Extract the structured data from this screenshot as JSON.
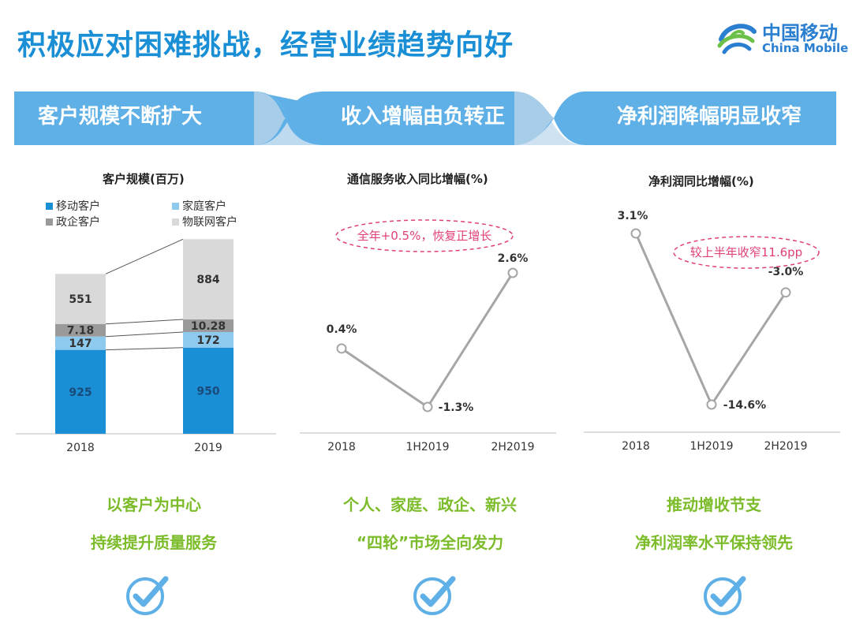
{
  "header": {
    "title": "积极应对困难挑战，经营业绩趋势向好",
    "logo_cn": "中国移动",
    "logo_en": "China Mobile"
  },
  "banners": [
    {
      "label": "客户规模不断扩大"
    },
    {
      "label": "收入增幅由负转正"
    },
    {
      "label": "净利润降幅明显收窄"
    }
  ],
  "colors": {
    "title_blue": "#1a8fd6",
    "banner_blue": "#5fb0e6",
    "mobile": "#1a8fd6",
    "home": "#8ec9ee",
    "enterprise": "#9a9a9a",
    "iot": "#d9d9d9",
    "accent_green": "#7cbc2a",
    "annotation_pink": "#e0407a"
  },
  "chart_data": [
    {
      "type": "bar",
      "stacked": true,
      "title": "客户规模(百万)",
      "categories": [
        "2018",
        "2019"
      ],
      "series": [
        {
          "name": "移动客户",
          "values": [
            925,
            950
          ]
        },
        {
          "name": "家庭客户",
          "values": [
            147,
            172
          ]
        },
        {
          "name": "政企客户",
          "values": [
            7.18,
            10.28
          ]
        },
        {
          "name": "物联网客户",
          "values": [
            551,
            884
          ]
        }
      ],
      "value_labels": [
        [
          "925",
          "950"
        ],
        [
          "147",
          "172"
        ],
        [
          "7.18",
          "10.28"
        ],
        [
          "551",
          "884"
        ]
      ],
      "legend_position": "top-left"
    },
    {
      "type": "line",
      "title": "通信服务收入同比增幅(%)",
      "categories": [
        "2018",
        "1H2019",
        "2H2019"
      ],
      "values": [
        0.4,
        -1.3,
        2.6
      ],
      "value_labels": [
        "0.4%",
        "-1.3%",
        "2.6%"
      ],
      "annotation": "全年+0.5%，恢复正增长"
    },
    {
      "type": "line",
      "title": "净利润同比增幅(%)",
      "categories": [
        "2018",
        "1H2019",
        "2H2019"
      ],
      "values": [
        3.1,
        -14.6,
        -3.0
      ],
      "value_labels": [
        "3.1%",
        "-14.6%",
        "-3.0%"
      ],
      "annotation": "较上半年收窄11.6pp"
    }
  ],
  "takeaways": [
    {
      "line1": "以客户为中心",
      "line2": "持续提升质量服务",
      "icon": "checkmark-circle-icon"
    },
    {
      "line1": "个人、家庭、政企、新兴",
      "line2": "“四轮”市场全向发力",
      "icon": "checkmark-circle-icon"
    },
    {
      "line1": "推动增收节支",
      "line2": "净利润率水平保持领先",
      "icon": "checkmark-circle-icon"
    }
  ]
}
